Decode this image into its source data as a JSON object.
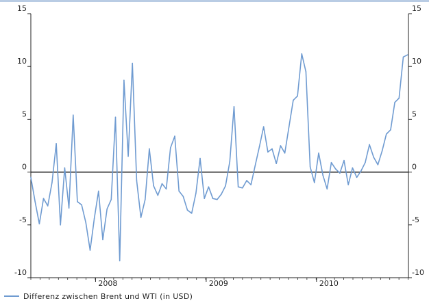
{
  "chart_data": {
    "type": "line",
    "title": "",
    "xlabel": "",
    "ylabel": "",
    "ylim": [
      -10,
      15
    ],
    "x_domain": [
      "2007-06-01",
      "2010-11-01"
    ],
    "y_ticks": [
      15,
      10,
      5,
      0,
      -5,
      -10
    ],
    "y_tick_labels": [
      "15",
      "10",
      "5",
      "0",
      "-5",
      "-10"
    ],
    "x_tick_labels": [
      {
        "label": "2008",
        "at": "2008-01-01"
      },
      {
        "label": "2009",
        "at": "2009-01-01"
      },
      {
        "label": "2010",
        "at": "2010-01-01"
      }
    ],
    "zero_line": true,
    "grid": false,
    "colors": {
      "series": "#6f9bd1",
      "zero_line": "#111111",
      "axis": "#222222"
    },
    "legend_position": "bottom-left",
    "series": [
      {
        "name": "Differenz zwischen Brent und WTI (in USD)",
        "x": [
          "2007-06-01",
          "2007-06-15",
          "2007-06-29",
          "2007-07-13",
          "2007-07-27",
          "2007-08-10",
          "2007-08-24",
          "2007-09-07",
          "2007-09-21",
          "2007-10-05",
          "2007-10-19",
          "2007-11-02",
          "2007-11-16",
          "2007-11-30",
          "2007-12-14",
          "2007-12-28",
          "2008-01-11",
          "2008-01-25",
          "2008-02-08",
          "2008-02-22",
          "2008-03-07",
          "2008-03-21",
          "2008-04-04",
          "2008-04-18",
          "2008-05-02",
          "2008-05-16",
          "2008-05-30",
          "2008-06-13",
          "2008-06-27",
          "2008-07-11",
          "2008-07-25",
          "2008-08-08",
          "2008-08-22",
          "2008-09-05",
          "2008-09-19",
          "2008-10-03",
          "2008-10-17",
          "2008-10-31",
          "2008-11-14",
          "2008-11-28",
          "2008-12-12",
          "2008-12-26",
          "2009-01-09",
          "2009-01-23",
          "2009-02-06",
          "2009-02-20",
          "2009-03-06",
          "2009-03-20",
          "2009-04-03",
          "2009-04-17",
          "2009-05-01",
          "2009-05-15",
          "2009-05-29",
          "2009-06-12",
          "2009-06-26",
          "2009-07-10",
          "2009-07-24",
          "2009-08-07",
          "2009-08-21",
          "2009-09-04",
          "2009-09-18",
          "2009-10-02",
          "2009-10-16",
          "2009-10-30",
          "2009-11-13",
          "2009-11-27",
          "2009-12-11",
          "2009-12-25",
          "2010-01-08",
          "2010-01-22",
          "2010-02-05",
          "2010-02-19",
          "2010-03-05",
          "2010-03-19",
          "2010-04-02",
          "2010-04-16",
          "2010-04-30",
          "2010-05-14",
          "2010-05-28",
          "2010-06-11",
          "2010-06-25",
          "2010-07-09",
          "2010-07-23",
          "2010-08-06",
          "2010-08-20",
          "2010-09-03",
          "2010-09-17",
          "2010-10-01",
          "2010-10-15",
          "2010-10-29"
        ],
        "y": [
          -0.5,
          -2.8,
          -4.9,
          -2.5,
          -3.2,
          -1.0,
          2.7,
          -5.0,
          0.4,
          -3.4,
          5.4,
          -2.8,
          -3.1,
          -4.8,
          -7.4,
          -4.4,
          -1.8,
          -6.4,
          -3.5,
          -2.6,
          5.2,
          -8.4,
          8.7,
          1.5,
          10.3,
          -0.8,
          -4.3,
          -2.6,
          2.2,
          -1.3,
          -2.2,
          -1.1,
          -1.6,
          2.3,
          3.4,
          -1.8,
          -2.3,
          -3.6,
          -3.9,
          -2.0,
          1.3,
          -2.5,
          -1.4,
          -2.5,
          -2.6,
          -2.1,
          -1.3,
          1.0,
          6.2,
          -1.4,
          -1.5,
          -0.8,
          -1.2,
          0.6,
          2.4,
          4.3,
          1.9,
          2.2,
          0.8,
          2.5,
          1.8,
          4.3,
          6.8,
          7.2,
          11.2,
          9.5,
          0.5,
          -1.0,
          1.8,
          -0.3,
          -1.6,
          0.9,
          0.3,
          -0.1,
          1.1,
          -1.2,
          0.4,
          -0.5,
          0.1,
          0.9,
          2.6,
          1.4,
          0.7,
          2.0,
          3.6,
          4.0,
          6.6,
          7.0,
          10.9,
          11.1
        ]
      }
    ]
  }
}
